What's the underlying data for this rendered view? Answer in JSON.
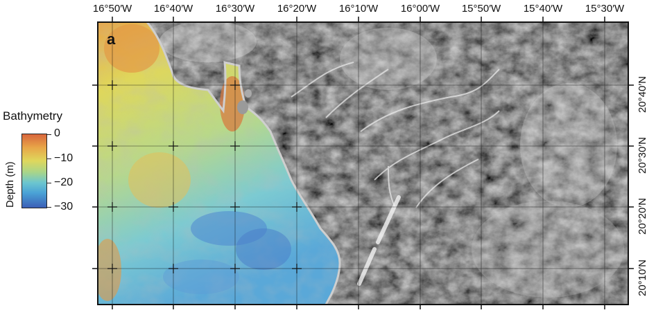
{
  "panel": {
    "label": "a"
  },
  "axes": {
    "longitude_labels": [
      "16°50′W",
      "16°40′W",
      "16°30′W",
      "16°20′W",
      "16°10′W",
      "16°00′W",
      "15°50′W",
      "15°40′W",
      "15°30′W"
    ],
    "latitude_labels": [
      "20°40′N",
      "20°30′N",
      "20°20′N",
      "20°10′N"
    ],
    "grid": true
  },
  "legend": {
    "title": "Bathymetry",
    "axis_label": "Depth (m)",
    "tick_labels": [
      "0",
      "−10",
      "−20",
      "−30"
    ],
    "colors": [
      "#d8663c",
      "#e8a648",
      "#dfd75c",
      "#a8d58a",
      "#6cc6cf",
      "#4aa2d6",
      "#3b5fb6"
    ]
  },
  "colors": {
    "land_dark": "#2a2a2a",
    "land_light": "#bdbdbd",
    "coast": "#c8c8c8",
    "frame": "#111111"
  }
}
